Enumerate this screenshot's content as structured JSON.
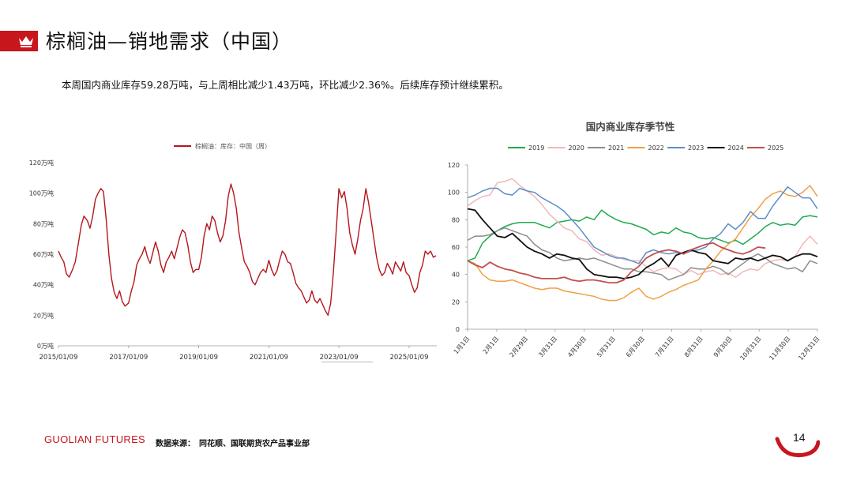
{
  "header": {
    "title": "棕榈油—销地需求（中国）"
  },
  "summary": "本周国内商业库存59.28万吨，与上周相比减少1.43万吨，环比减少2.36%。后续库存预计继续累积。",
  "footer": {
    "brand": "GUOLIAN FUTURES",
    "source": "数据来源：　同花顺、国联期货农产品事业部",
    "page": "14"
  },
  "colors": {
    "brand_red": "#c8161d"
  },
  "chart_data": [
    {
      "type": "line",
      "title": "",
      "legend": "棕榈油：库存：中国（周）",
      "legend_position": "top",
      "x_ticks": [
        "2015/01/09",
        "2017/01/09",
        "2019/01/09",
        "2021/01/09",
        "2023/01/09",
        "2025/01/09"
      ],
      "y_ticks": [
        "0万吨",
        "20万吨",
        "40万吨",
        "60万吨",
        "80万吨",
        "100万吨",
        "120万吨"
      ],
      "ylim": [
        0,
        120
      ],
      "xlim": [
        "2015/01/09",
        "2025/10/24"
      ],
      "series": [
        {
          "name": "棕榈油：库存：中国（周）",
          "color": "#b5161d",
          "points": [
            [
              "2015/01/09",
              62
            ],
            [
              "2015/02/06",
              58
            ],
            [
              "2015/03/06",
              55
            ],
            [
              "2015/04/03",
              47
            ],
            [
              "2015/05/01",
              45
            ],
            [
              "2015/06/05",
              50
            ],
            [
              "2015/07/03",
              55
            ],
            [
              "2015/08/07",
              68
            ],
            [
              "2015/09/04",
              79
            ],
            [
              "2015/10/02",
              85
            ],
            [
              "2015/11/06",
              82
            ],
            [
              "2015/12/04",
              77
            ],
            [
              "2016/01/01",
              85
            ],
            [
              "2016/01/29",
              96
            ],
            [
              "2016/02/26",
              100
            ],
            [
              "2016/03/25",
              103
            ],
            [
              "2016/04/22",
              101
            ],
            [
              "2016/05/20",
              83
            ],
            [
              "2016/06/17",
              60
            ],
            [
              "2016/07/15",
              44
            ],
            [
              "2016/08/12",
              35
            ],
            [
              "2016/09/09",
              31
            ],
            [
              "2016/10/07",
              36
            ],
            [
              "2016/11/04",
              29
            ],
            [
              "2016/12/02",
              26
            ],
            [
              "2017/01/09",
              28
            ],
            [
              "2017/02/06",
              36
            ],
            [
              "2017/03/06",
              42
            ],
            [
              "2017/04/03",
              53
            ],
            [
              "2017/05/01",
              57
            ],
            [
              "2017/05/29",
              60
            ],
            [
              "2017/06/26",
              65
            ],
            [
              "2017/07/24",
              58
            ],
            [
              "2017/08/21",
              54
            ],
            [
              "2017/09/18",
              61
            ],
            [
              "2017/10/16",
              68
            ],
            [
              "2017/11/13",
              62
            ],
            [
              "2017/12/11",
              53
            ],
            [
              "2018/01/08",
              48
            ],
            [
              "2018/02/05",
              55
            ],
            [
              "2018/03/05",
              58
            ],
            [
              "2018/04/02",
              62
            ],
            [
              "2018/04/30",
              57
            ],
            [
              "2018/05/28",
              64
            ],
            [
              "2018/06/25",
              71
            ],
            [
              "2018/07/23",
              76
            ],
            [
              "2018/08/20",
              74
            ],
            [
              "2018/09/17",
              66
            ],
            [
              "2018/10/15",
              55
            ],
            [
              "2018/11/12",
              48
            ],
            [
              "2018/12/10",
              50
            ],
            [
              "2019/01/09",
              50
            ],
            [
              "2019/02/06",
              58
            ],
            [
              "2019/03/06",
              72
            ],
            [
              "2019/04/03",
              80
            ],
            [
              "2019/05/01",
              76
            ],
            [
              "2019/05/29",
              85
            ],
            [
              "2019/06/26",
              82
            ],
            [
              "2019/07/24",
              74
            ],
            [
              "2019/08/21",
              68
            ],
            [
              "2019/09/18",
              72
            ],
            [
              "2019/10/16",
              82
            ],
            [
              "2019/11/13",
              98
            ],
            [
              "2019/12/11",
              106
            ],
            [
              "2020/01/08",
              100
            ],
            [
              "2020/02/05",
              90
            ],
            [
              "2020/03/04",
              74
            ],
            [
              "2020/04/01",
              64
            ],
            [
              "2020/04/29",
              55
            ],
            [
              "2020/05/27",
              52
            ],
            [
              "2020/06/24",
              48
            ],
            [
              "2020/07/22",
              42
            ],
            [
              "2020/08/19",
              40
            ],
            [
              "2020/09/16",
              44
            ],
            [
              "2020/10/14",
              48
            ],
            [
              "2020/11/11",
              50
            ],
            [
              "2020/12/09",
              48
            ],
            [
              "2021/01/09",
              56
            ],
            [
              "2021/02/06",
              50
            ],
            [
              "2021/03/06",
              46
            ],
            [
              "2021/04/03",
              49
            ],
            [
              "2021/05/01",
              56
            ],
            [
              "2021/05/29",
              62
            ],
            [
              "2021/06/26",
              60
            ],
            [
              "2021/07/24",
              55
            ],
            [
              "2021/08/21",
              54
            ],
            [
              "2021/09/18",
              48
            ],
            [
              "2021/10/16",
              41
            ],
            [
              "2021/11/13",
              38
            ],
            [
              "2021/12/11",
              36
            ],
            [
              "2022/01/08",
              32
            ],
            [
              "2022/02/05",
              28
            ],
            [
              "2022/03/05",
              30
            ],
            [
              "2022/04/02",
              36
            ],
            [
              "2022/04/30",
              30
            ],
            [
              "2022/05/28",
              28
            ],
            [
              "2022/06/25",
              31
            ],
            [
              "2022/07/23",
              27
            ],
            [
              "2022/08/20",
              23
            ],
            [
              "2022/09/17",
              20
            ],
            [
              "2022/10/15",
              28
            ],
            [
              "2022/11/12",
              48
            ],
            [
              "2022/12/10",
              74
            ],
            [
              "2023/01/09",
              103
            ],
            [
              "2023/02/06",
              97
            ],
            [
              "2023/03/06",
              101
            ],
            [
              "2023/04/03",
              90
            ],
            [
              "2023/05/01",
              74
            ],
            [
              "2023/05/29",
              66
            ],
            [
              "2023/06/26",
              60
            ],
            [
              "2023/07/24",
              70
            ],
            [
              "2023/08/21",
              82
            ],
            [
              "2023/09/18",
              90
            ],
            [
              "2023/10/16",
              103
            ],
            [
              "2023/11/13",
              94
            ],
            [
              "2023/12/11",
              82
            ],
            [
              "2024/01/08",
              70
            ],
            [
              "2024/02/05",
              58
            ],
            [
              "2024/03/04",
              50
            ],
            [
              "2024/04/01",
              46
            ],
            [
              "2024/04/29",
              48
            ],
            [
              "2024/05/27",
              54
            ],
            [
              "2024/06/24",
              51
            ],
            [
              "2024/07/22",
              47
            ],
            [
              "2024/08/19",
              55
            ],
            [
              "2024/09/16",
              52
            ],
            [
              "2024/10/14",
              49
            ],
            [
              "2024/11/11",
              55
            ],
            [
              "2024/12/09",
              48
            ],
            [
              "2025/01/09",
              46
            ],
            [
              "2025/02/06",
              40
            ],
            [
              "2025/03/06",
              35
            ],
            [
              "2025/04/03",
              38
            ],
            [
              "2025/05/01",
              48
            ],
            [
              "2025/05/29",
              53
            ],
            [
              "2025/06/26",
              62
            ],
            [
              "2025/07/24",
              60
            ],
            [
              "2025/08/21",
              62
            ],
            [
              "2025/09/18",
              58
            ],
            [
              "2025/10/16",
              59
            ]
          ]
        }
      ]
    },
    {
      "type": "line",
      "title": "国内商业库存季节性",
      "legend_position": "top",
      "x_ticks": [
        "1月1日",
        "2月1日",
        "2月29日",
        "3月31日",
        "4月30日",
        "5月31日",
        "6月30日",
        "7月31日",
        "8月31日",
        "9月30日",
        "10月31日",
        "11月30日",
        "12月31日"
      ],
      "y_ticks": [
        "0",
        "20",
        "40",
        "60",
        "80",
        "100",
        "120"
      ],
      "ylim": [
        0,
        120
      ],
      "series": [
        {
          "name": "2019",
          "color": "#1daa4c",
          "values": [
            50,
            52,
            63,
            68,
            72,
            75,
            77,
            78,
            78,
            78,
            76,
            74,
            78,
            79,
            80,
            79,
            82,
            80,
            87,
            83,
            80,
            78,
            77,
            75,
            73,
            69,
            71,
            70,
            74,
            71,
            70,
            67,
            66,
            67,
            65,
            63,
            65,
            62,
            66,
            70,
            75,
            78,
            76,
            77,
            76,
            82,
            83,
            82
          ]
        },
        {
          "name": "2020",
          "color": "#f0b8b8",
          "values": [
            90,
            94,
            97,
            98,
            107,
            108,
            110,
            105,
            101,
            97,
            91,
            84,
            79,
            74,
            72,
            66,
            64,
            58,
            54,
            55,
            53,
            51,
            50,
            50,
            46,
            42,
            44,
            45,
            44,
            40,
            43,
            40,
            42,
            43,
            40,
            41,
            38,
            42,
            44,
            43,
            48,
            50,
            51,
            50,
            53,
            62,
            68,
            62
          ]
        },
        {
          "name": "2021",
          "color": "#8c8c8c",
          "values": [
            65,
            68,
            68,
            69,
            72,
            74,
            72,
            70,
            68,
            62,
            58,
            56,
            52,
            50,
            51,
            52,
            51,
            52,
            50,
            48,
            46,
            44,
            44,
            42,
            42,
            41,
            40,
            36,
            38,
            40,
            45,
            44,
            44,
            46,
            44,
            40,
            44,
            48,
            52,
            55,
            52,
            48,
            46,
            44,
            45,
            42,
            50,
            48
          ]
        },
        {
          "name": "2022",
          "color": "#f0a046",
          "values": [
            50,
            48,
            40,
            36,
            35,
            35,
            36,
            34,
            32,
            30,
            29,
            30,
            30,
            28,
            27,
            26,
            25,
            24,
            22,
            21,
            21,
            23,
            27,
            30,
            24,
            22,
            24,
            27,
            29,
            32,
            34,
            36,
            44,
            50,
            57,
            62,
            66,
            74,
            82,
            88,
            95,
            99,
            101,
            98,
            97,
            100,
            105,
            97
          ]
        },
        {
          "name": "2023",
          "color": "#5b8ec7",
          "values": [
            96,
            98,
            101,
            103,
            103,
            99,
            98,
            103,
            101,
            100,
            96,
            93,
            90,
            86,
            80,
            74,
            67,
            60,
            57,
            54,
            52,
            52,
            50,
            48,
            56,
            58,
            56,
            55,
            56,
            55,
            57,
            58,
            60,
            66,
            70,
            77,
            73,
            78,
            86,
            81,
            81,
            90,
            97,
            104,
            100,
            96,
            96,
            88
          ]
        },
        {
          "name": "2024",
          "color": "#111111",
          "values": [
            88,
            87,
            80,
            74,
            68,
            67,
            70,
            65,
            60,
            57,
            55,
            52,
            55,
            54,
            52,
            51,
            44,
            40,
            39,
            38,
            38,
            37,
            38,
            40,
            45,
            48,
            52,
            46,
            54,
            56,
            58,
            56,
            55,
            50,
            49,
            48,
            52,
            51,
            52,
            50,
            52,
            54,
            53,
            50,
            53,
            55,
            55,
            53
          ]
        },
        {
          "name": "2025",
          "color": "#c0504d",
          "values": [
            50,
            47,
            45,
            49,
            46,
            44,
            43,
            41,
            40,
            38,
            37,
            37,
            37,
            38,
            36,
            35,
            36,
            36,
            35,
            34,
            34,
            36,
            42,
            46,
            52,
            55,
            57,
            58,
            57,
            55,
            58,
            60,
            62,
            63,
            60,
            58,
            56,
            55,
            57,
            60,
            59.28
          ]
        }
      ]
    }
  ]
}
